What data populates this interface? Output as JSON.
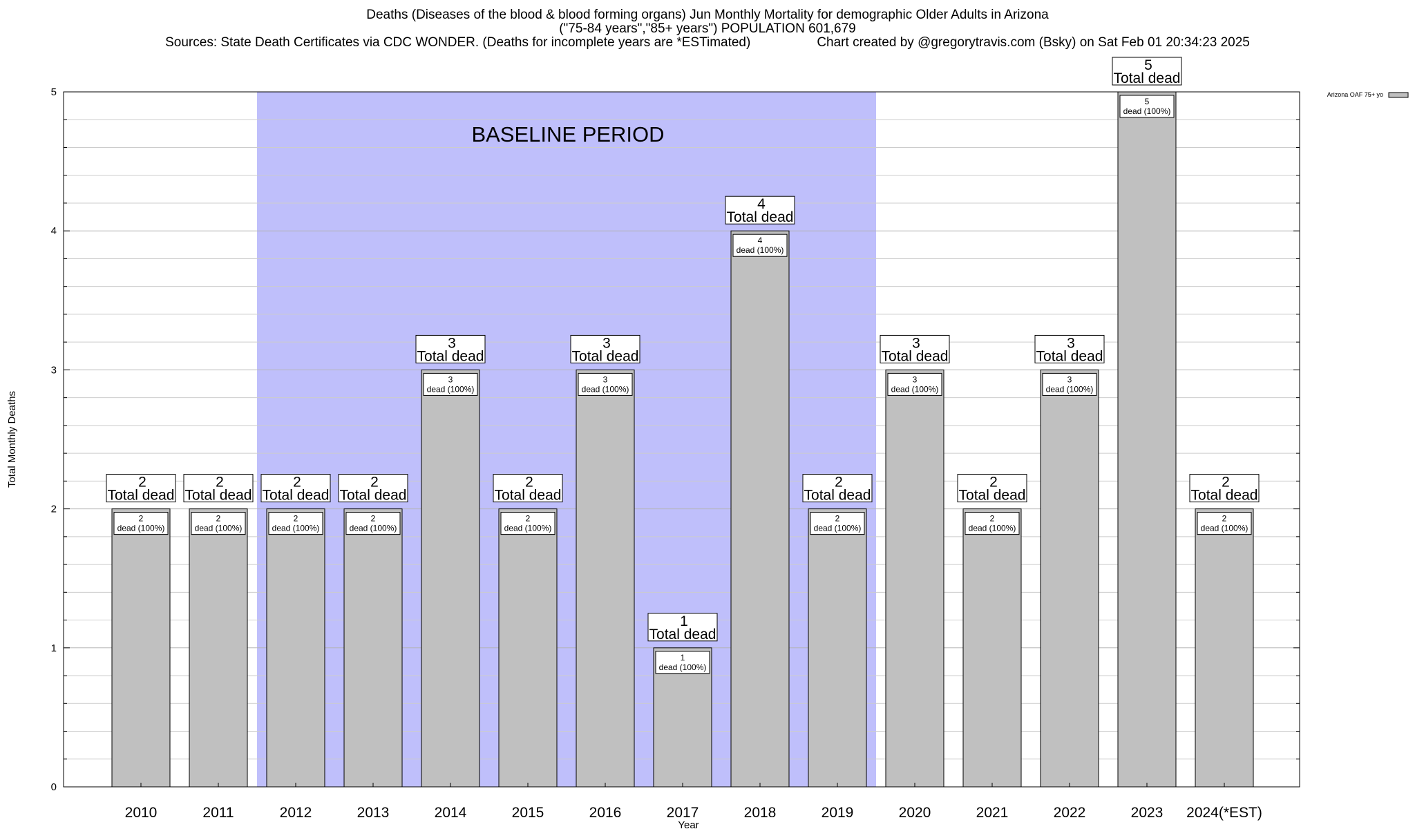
{
  "chart_data": {
    "type": "bar",
    "title": "Deaths (Diseases of the blood & blood forming organs) Jun Monthly Mortality for demographic Older Adults in Arizona",
    "subtitle": "(\"75-84 years\",\"85+ years\") POPULATION 601,679",
    "sources": "Sources: State Death Certificates via CDC WONDER. (Deaths for incomplete years are *ESTimated)",
    "credit": "Chart created by @gregorytravis.com (Bsky) on Sat Feb 01 20:34:23 2025",
    "xlabel": "Year",
    "ylabel": "Total Monthly Deaths",
    "ylim": [
      0,
      5
    ],
    "yticks": [
      "0",
      "1",
      "2",
      "3",
      "4",
      "5"
    ],
    "grid": true,
    "legend_position": "top-right",
    "categories": [
      "2010",
      "2011",
      "2012",
      "2013",
      "2014",
      "2015",
      "2016",
      "2017",
      "2018",
      "2019",
      "2020",
      "2021",
      "2022",
      "2023",
      "2024(*EST)"
    ],
    "series": [
      {
        "name": "Arizona OAF 75+ yo",
        "color": "#c0c0c0",
        "values": [
          2,
          2,
          2,
          2,
          3,
          2,
          3,
          1,
          4,
          2,
          3,
          2,
          3,
          5,
          2
        ]
      }
    ],
    "total_labels": [
      "2",
      "2",
      "2",
      "2",
      "3",
      "2",
      "3",
      "1",
      "4",
      "2",
      "3",
      "2",
      "3",
      "5",
      "2"
    ],
    "total_caption": "Total dead",
    "inner_labels": [
      "2",
      "2",
      "2",
      "2",
      "3",
      "2",
      "3",
      "1",
      "4",
      "2",
      "3",
      "2",
      "3",
      "5",
      "2"
    ],
    "inner_caption": "dead (100%)",
    "baseline": {
      "label": "BASELINE PERIOD",
      "from": "2012",
      "to": "2019",
      "color": "#bfbffb"
    }
  }
}
